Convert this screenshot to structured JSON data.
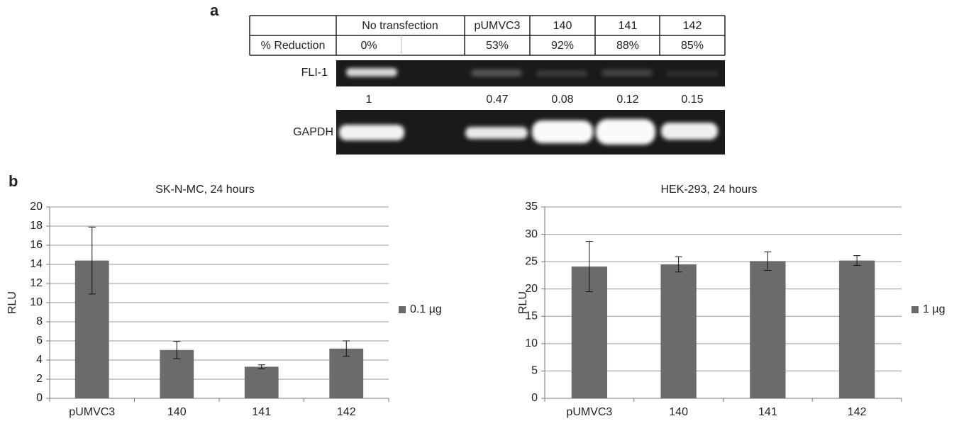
{
  "panel_a": {
    "label": "a",
    "table": {
      "header": [
        "No transfection",
        "pUMVC3",
        "140",
        "141",
        "142"
      ],
      "rows": [
        [
          "% Reduction",
          "0%",
          "53%",
          "92%",
          "88%",
          "85%"
        ]
      ]
    },
    "blots": [
      {
        "label": "FLI-1"
      },
      {
        "label": "GAPDH"
      }
    ],
    "quantification": [
      1,
      0.47,
      0.08,
      0.12,
      0.15
    ]
  },
  "panel_b": {
    "label": "b"
  },
  "chart_data": [
    {
      "type": "bar",
      "title": "SK-N-MC, 24 hours",
      "ylabel": "RLU",
      "categories": [
        "pUMVC3",
        "140",
        "141",
        "142"
      ],
      "series": [
        {
          "name": "0.1 µg",
          "color": "#6b6b6b",
          "values": [
            14.4,
            5.05,
            3.3,
            5.2
          ],
          "errors": [
            3.5,
            0.9,
            0.2,
            0.8
          ]
        }
      ],
      "ylim": [
        0,
        20
      ],
      "yticks": [
        0,
        2,
        4,
        6,
        8,
        10,
        12,
        14,
        16,
        18,
        20
      ],
      "grid": true,
      "legend": "right"
    },
    {
      "type": "bar",
      "title": "HEK-293, 24 hours",
      "ylabel": "RLU",
      "categories": [
        "pUMVC3",
        "140",
        "141",
        "142"
      ],
      "series": [
        {
          "name": "1 µg",
          "color": "#6b6b6b",
          "values": [
            24.1,
            24.5,
            25.1,
            25.2
          ],
          "errors": [
            4.6,
            1.4,
            1.7,
            0.9
          ]
        }
      ],
      "ylim": [
        0,
        35
      ],
      "yticks": [
        0,
        5,
        10,
        15,
        20,
        25,
        30,
        35
      ],
      "grid": true,
      "legend": "right"
    }
  ]
}
